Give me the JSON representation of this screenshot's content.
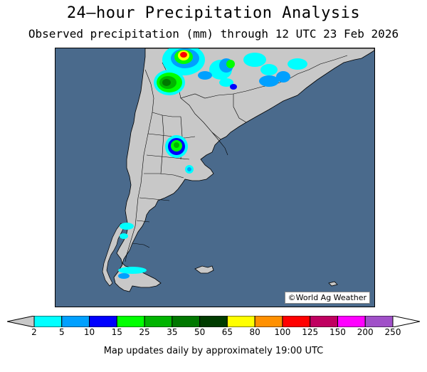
{
  "header": {
    "title": "24—hour Precipitation Analysis",
    "subtitle": "Observed precipitation (mm) through 12 UTC 23 Feb 2026"
  },
  "map": {
    "region": "Southern South America",
    "ocean_color": "#4a6a8c",
    "land_color": "#c8c8c8",
    "credit": "©World Ag Weather"
  },
  "legend": {
    "unit": "mm",
    "bins": [
      {
        "from": 2,
        "to": 5,
        "color": "#00ffff"
      },
      {
        "from": 5,
        "to": 10,
        "color": "#00a0ff"
      },
      {
        "from": 10,
        "to": 15,
        "color": "#0000ff"
      },
      {
        "from": 15,
        "to": 25,
        "color": "#00ff00"
      },
      {
        "from": 25,
        "to": 35,
        "color": "#00b400"
      },
      {
        "from": 35,
        "to": 50,
        "color": "#007800"
      },
      {
        "from": 50,
        "to": 65,
        "color": "#003c00"
      },
      {
        "from": 65,
        "to": 80,
        "color": "#ffff00"
      },
      {
        "from": 80,
        "to": 100,
        "color": "#ff9000"
      },
      {
        "from": 100,
        "to": 125,
        "color": "#ff0000"
      },
      {
        "from": 125,
        "to": 150,
        "color": "#c00060"
      },
      {
        "from": 150,
        "to": 200,
        "color": "#ff00ff"
      },
      {
        "from": 200,
        "to": 250,
        "color": "#a050c8"
      }
    ],
    "tick_labels": [
      "2",
      "5",
      "10",
      "15",
      "25",
      "35",
      "50",
      "65",
      "80",
      "100",
      "125",
      "150",
      "200",
      "250"
    ]
  },
  "footer": {
    "note": "Map updates daily by approximately 19:00 UTC"
  }
}
